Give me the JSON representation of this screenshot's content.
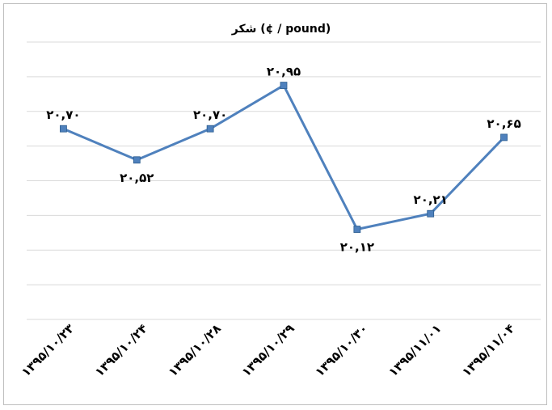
{
  "chart_data": {
    "type": "line",
    "title": "شکر  (¢ / pound)",
    "categories": [
      "۱۳۹۵/۱۰/۲۳",
      "۱۳۹۵/۱۰/۲۴",
      "۱۳۹۵/۱۰/۲۸",
      "۱۳۹۵/۱۰/۲۹",
      "۱۳۹۵/۱۰/۳۰",
      "۱۳۹۵/۱۱/۰۱",
      "۱۳۹۵/۱۱/۰۴"
    ],
    "values": [
      20.7,
      20.52,
      20.7,
      20.95,
      20.12,
      20.21,
      20.65
    ],
    "value_labels": [
      "۲۰,۷۰",
      "۲۰,۵۲",
      "۲۰,۷۰",
      "۲۰,۹۵",
      "۲۰,۱۲",
      "۲۰,۲۱",
      "۲۰,۶۵"
    ],
    "label_positions": [
      "above",
      "below",
      "above",
      "above",
      "below",
      "above",
      "above"
    ],
    "ylim": [
      19.6,
      21.2
    ],
    "grid": true,
    "line_color": "#4f81bd",
    "marker_color": "#4f81bd"
  }
}
